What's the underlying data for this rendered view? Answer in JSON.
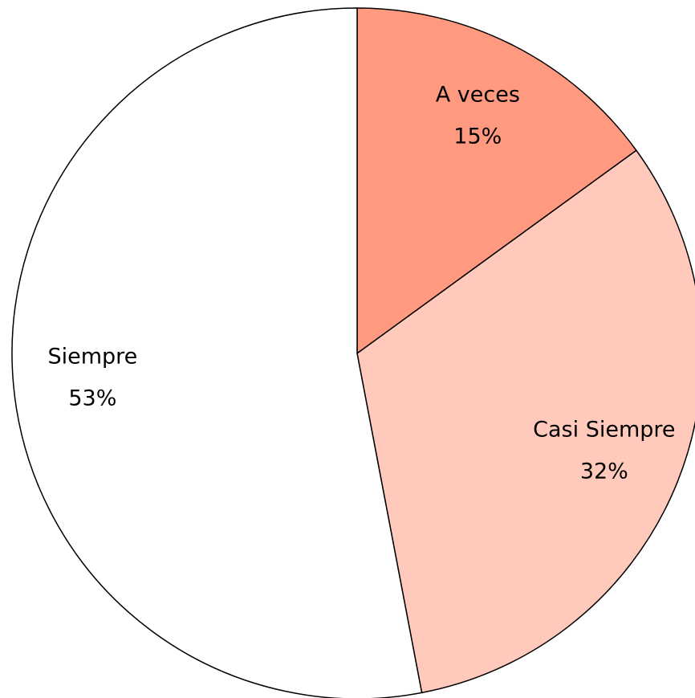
{
  "chart_data": {
    "type": "pie",
    "categories": [
      "A veces",
      "Casi Siempre",
      "Siempre"
    ],
    "values": [
      15,
      32,
      53
    ],
    "value_labels": [
      "15%",
      "32%",
      "53%"
    ],
    "colors": [
      "#ff9a80",
      "#ffcabb",
      "#ffffff"
    ]
  }
}
